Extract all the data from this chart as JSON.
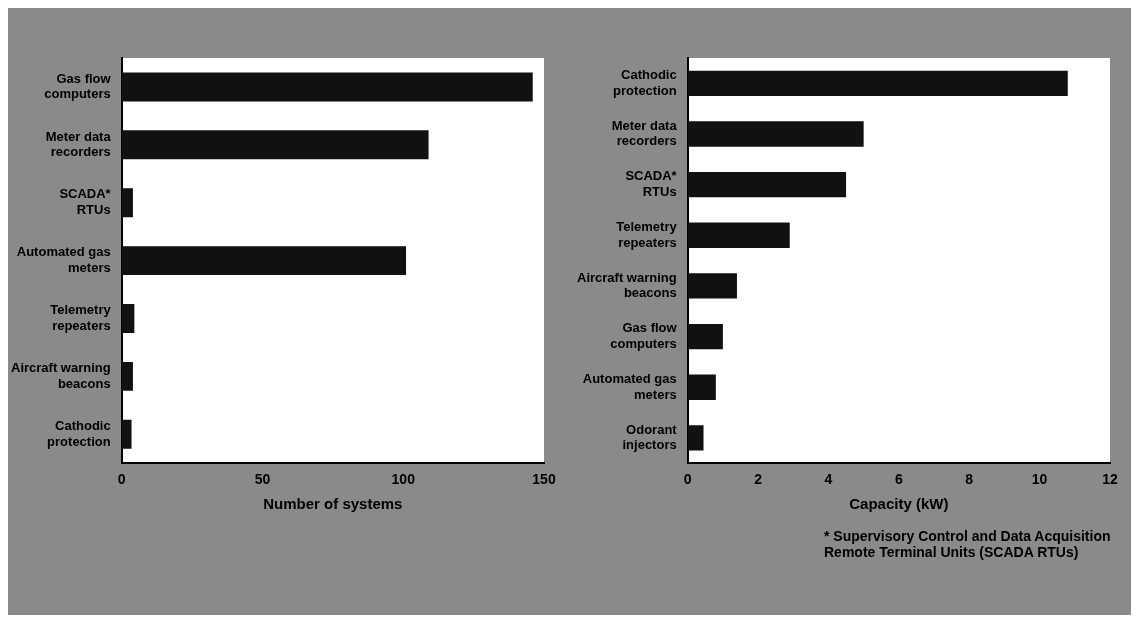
{
  "chart_data": [
    {
      "type": "bar",
      "orientation": "horizontal",
      "categories": [
        "Gas flow computers",
        "Meter data recorders",
        "SCADA* RTUs",
        "Automated gas meters",
        "Telemetry repeaters",
        "Aircraft warning beacons",
        "Cathodic protection"
      ],
      "values": [
        146,
        109,
        4,
        101,
        4.5,
        4,
        3.5
      ],
      "color": "#111111",
      "xlabel": "Number of systems",
      "xlim": [
        0,
        150
      ],
      "xticks": [
        0,
        50,
        100,
        150
      ],
      "grid": false,
      "legend": false
    },
    {
      "type": "bar",
      "orientation": "horizontal",
      "categories": [
        "Cathodic protection",
        "Meter data recorders",
        "SCADA* RTUs",
        "Telemetry repeaters",
        "Aircraft warning beacons",
        "Gas flow computers",
        "Automated gas meters",
        "Odorant injectors"
      ],
      "values": [
        10.8,
        5,
        4.5,
        2.9,
        1.4,
        1.0,
        0.8,
        0.45
      ],
      "color": "#111111",
      "xlabel": "Capacity (kW)",
      "xlim": [
        0,
        12
      ],
      "xticks": [
        0,
        2,
        4,
        6,
        8,
        10,
        12
      ],
      "grid": false,
      "legend": false,
      "annotations": [
        "* Supervisory Control and Data Acquisition Remote Terminal Units (SCADA RTUs)"
      ]
    }
  ]
}
